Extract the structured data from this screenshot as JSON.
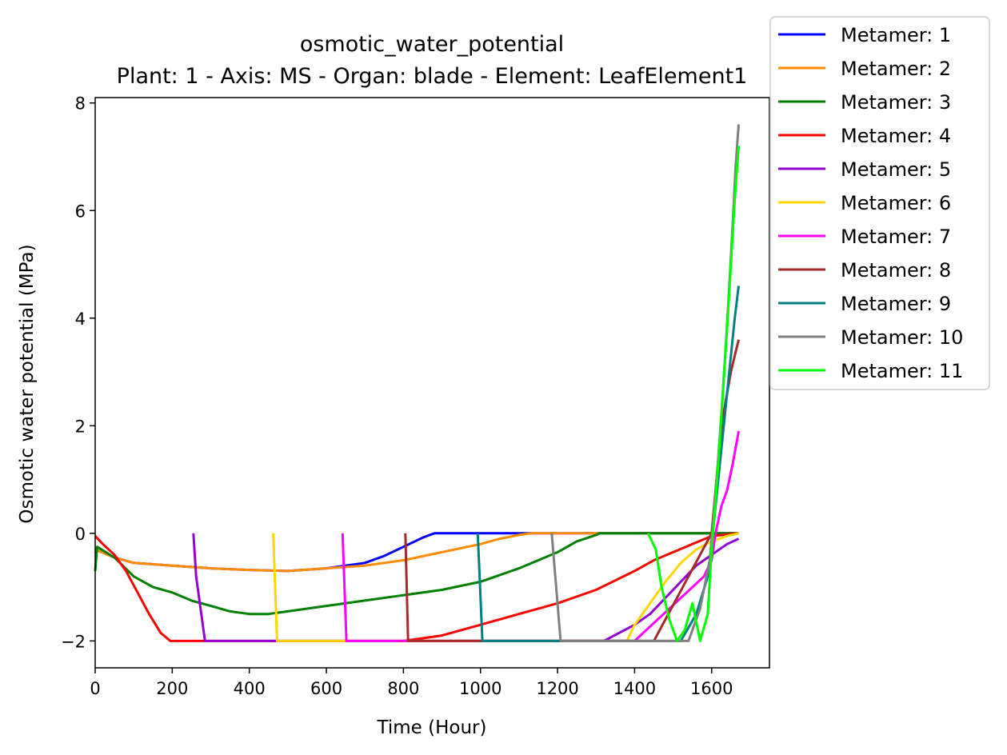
{
  "chart_data": {
    "type": "line",
    "title": "osmotic_water_potential",
    "subtitle": "Plant: 1 - Axis: MS - Organ: blade - Element: LeafElement1",
    "xlabel": "Time (Hour)",
    "ylabel": "Osmotic water potential (MPa)",
    "xlim": [
      0,
      1750
    ],
    "ylim": [
      -2.5,
      8.1
    ],
    "xticks": [
      0,
      200,
      400,
      600,
      800,
      1000,
      1200,
      1400,
      1600
    ],
    "xtick_labels": [
      "0",
      "200",
      "400",
      "600",
      "800",
      "1000",
      "1200",
      "1400",
      "1600"
    ],
    "yticks": [
      -2,
      0,
      2,
      4,
      6,
      8
    ],
    "ytick_labels": [
      "−2",
      "0",
      "2",
      "4",
      "6",
      "8"
    ],
    "grid": false,
    "legend_position": "outside-top-right",
    "series": [
      {
        "name": "Metamer: 1",
        "color": "#0000ff",
        "x": [
          0,
          50,
          100,
          200,
          300,
          400,
          500,
          600,
          650,
          700,
          750,
          800,
          850,
          880,
          900,
          1000,
          1200,
          1400,
          1600,
          1670
        ],
        "y": [
          -0.3,
          -0.45,
          -0.55,
          -0.6,
          -0.65,
          -0.68,
          -0.7,
          -0.65,
          -0.6,
          -0.55,
          -0.42,
          -0.25,
          -0.08,
          0,
          0,
          0,
          0,
          0,
          0,
          0
        ]
      },
      {
        "name": "Metamer: 2",
        "color": "#ff8c00",
        "x": [
          0,
          50,
          100,
          200,
          300,
          400,
          500,
          600,
          700,
          800,
          900,
          1000,
          1050,
          1100,
          1130,
          1200,
          1400,
          1600,
          1670
        ],
        "y": [
          -0.3,
          -0.45,
          -0.55,
          -0.6,
          -0.65,
          -0.68,
          -0.7,
          -0.65,
          -0.6,
          -0.5,
          -0.35,
          -0.2,
          -0.1,
          -0.03,
          0,
          0,
          0,
          0,
          0
        ]
      },
      {
        "name": "Metamer: 3",
        "color": "#008000",
        "x": [
          0,
          5,
          50,
          100,
          150,
          200,
          250,
          300,
          350,
          400,
          450,
          500,
          550,
          600,
          700,
          800,
          900,
          1000,
          1100,
          1200,
          1250,
          1300,
          1310,
          1400,
          1600,
          1670
        ],
        "y": [
          -0.7,
          -0.25,
          -0.45,
          -0.8,
          -1.0,
          -1.1,
          -1.25,
          -1.35,
          -1.45,
          -1.5,
          -1.5,
          -1.45,
          -1.4,
          -1.35,
          -1.25,
          -1.15,
          -1.05,
          -0.9,
          -0.65,
          -0.35,
          -0.15,
          -0.03,
          0,
          0,
          0,
          0
        ]
      },
      {
        "name": "Metamer: 4",
        "color": "#ff0000",
        "x": [
          0,
          20,
          50,
          80,
          110,
          140,
          170,
          195,
          300,
          600,
          800,
          850,
          900,
          1000,
          1100,
          1200,
          1300,
          1400,
          1450,
          1500,
          1550,
          1600,
          1670
        ],
        "y": [
          -0.05,
          -0.2,
          -0.4,
          -0.7,
          -1.1,
          -1.5,
          -1.85,
          -2.0,
          -2.0,
          -2.0,
          -2.0,
          -1.95,
          -1.9,
          -1.7,
          -1.5,
          -1.3,
          -1.05,
          -0.7,
          -0.5,
          -0.35,
          -0.2,
          -0.05,
          0
        ]
      },
      {
        "name": "Metamer: 5",
        "color": "#9400d3",
        "x": [
          255,
          262,
          285,
          400,
          800,
          1200,
          1320,
          1360,
          1400,
          1440,
          1480,
          1520,
          1560,
          1600,
          1640,
          1670
        ],
        "y": [
          0,
          -0.8,
          -2.0,
          -2.0,
          -2.0,
          -2.0,
          -2.0,
          -1.85,
          -1.7,
          -1.5,
          -1.2,
          -0.9,
          -0.6,
          -0.4,
          -0.2,
          -0.1
        ]
      },
      {
        "name": "Metamer: 6",
        "color": "#ffd700",
        "x": [
          462,
          472,
          800,
          1380,
          1400,
          1440,
          1480,
          1520,
          1560,
          1600,
          1640,
          1670
        ],
        "y": [
          0,
          -2.0,
          -2.0,
          -2.0,
          -1.7,
          -1.3,
          -0.9,
          -0.55,
          -0.3,
          -0.15,
          -0.05,
          0
        ]
      },
      {
        "name": "Metamer: 7",
        "color": "#ff00ff",
        "x": [
          642,
          652,
          1000,
          1400,
          1430,
          1460,
          1490,
          1520,
          1550,
          1580,
          1600,
          1610,
          1625,
          1640,
          1655,
          1670
        ],
        "y": [
          0,
          -2.0,
          -2.0,
          -2.0,
          -1.8,
          -1.6,
          -1.4,
          -1.2,
          -1.0,
          -0.8,
          -0.5,
          0,
          0.5,
          0.8,
          1.3,
          1.9
        ]
      },
      {
        "name": "Metamer: 8",
        "color": "#a52a2a",
        "x": [
          805,
          812,
          1000,
          1450,
          1480,
          1510,
          1540,
          1570,
          1600,
          1610,
          1620,
          1630,
          1640,
          1650,
          1660,
          1670
        ],
        "y": [
          0,
          -2.0,
          -2.0,
          -2.0,
          -1.6,
          -1.2,
          -0.8,
          -0.4,
          0,
          0.8,
          1.6,
          2.2,
          2.6,
          3.0,
          3.3,
          3.6
        ]
      },
      {
        "name": "Metamer: 9",
        "color": "#008080",
        "x": [
          993,
          1005,
          1200,
          1520,
          1560,
          1590,
          1600,
          1610,
          1620,
          1630,
          1640,
          1650,
          1660,
          1670
        ],
        "y": [
          0,
          -2.0,
          -2.0,
          -2.0,
          -1.5,
          -0.8,
          -0.2,
          0.5,
          1.2,
          1.9,
          2.6,
          3.3,
          4.0,
          4.6
        ]
      },
      {
        "name": "Metamer: 10",
        "color": "#808080",
        "x": [
          1185,
          1208,
          1400,
          1540,
          1570,
          1595,
          1605,
          1615,
          1625,
          1635,
          1645,
          1655,
          1662,
          1670
        ],
        "y": [
          0,
          -2.0,
          -2.0,
          -2.0,
          -1.4,
          -0.5,
          0.3,
          1.2,
          2.2,
          3.3,
          4.5,
          5.8,
          6.8,
          7.6
        ]
      },
      {
        "name": "Metamer: 11",
        "color": "#00ff00",
        "x": [
          1435,
          1455,
          1470,
          1490,
          1510,
          1530,
          1550,
          1570,
          1590,
          1600,
          1610,
          1620,
          1630,
          1640,
          1650,
          1660,
          1670
        ],
        "y": [
          0,
          -0.3,
          -1.0,
          -1.6,
          -2.0,
          -1.8,
          -1.3,
          -2.0,
          -1.5,
          -0.3,
          0.6,
          1.6,
          2.7,
          3.8,
          5.0,
          6.2,
          7.2
        ]
      }
    ]
  }
}
